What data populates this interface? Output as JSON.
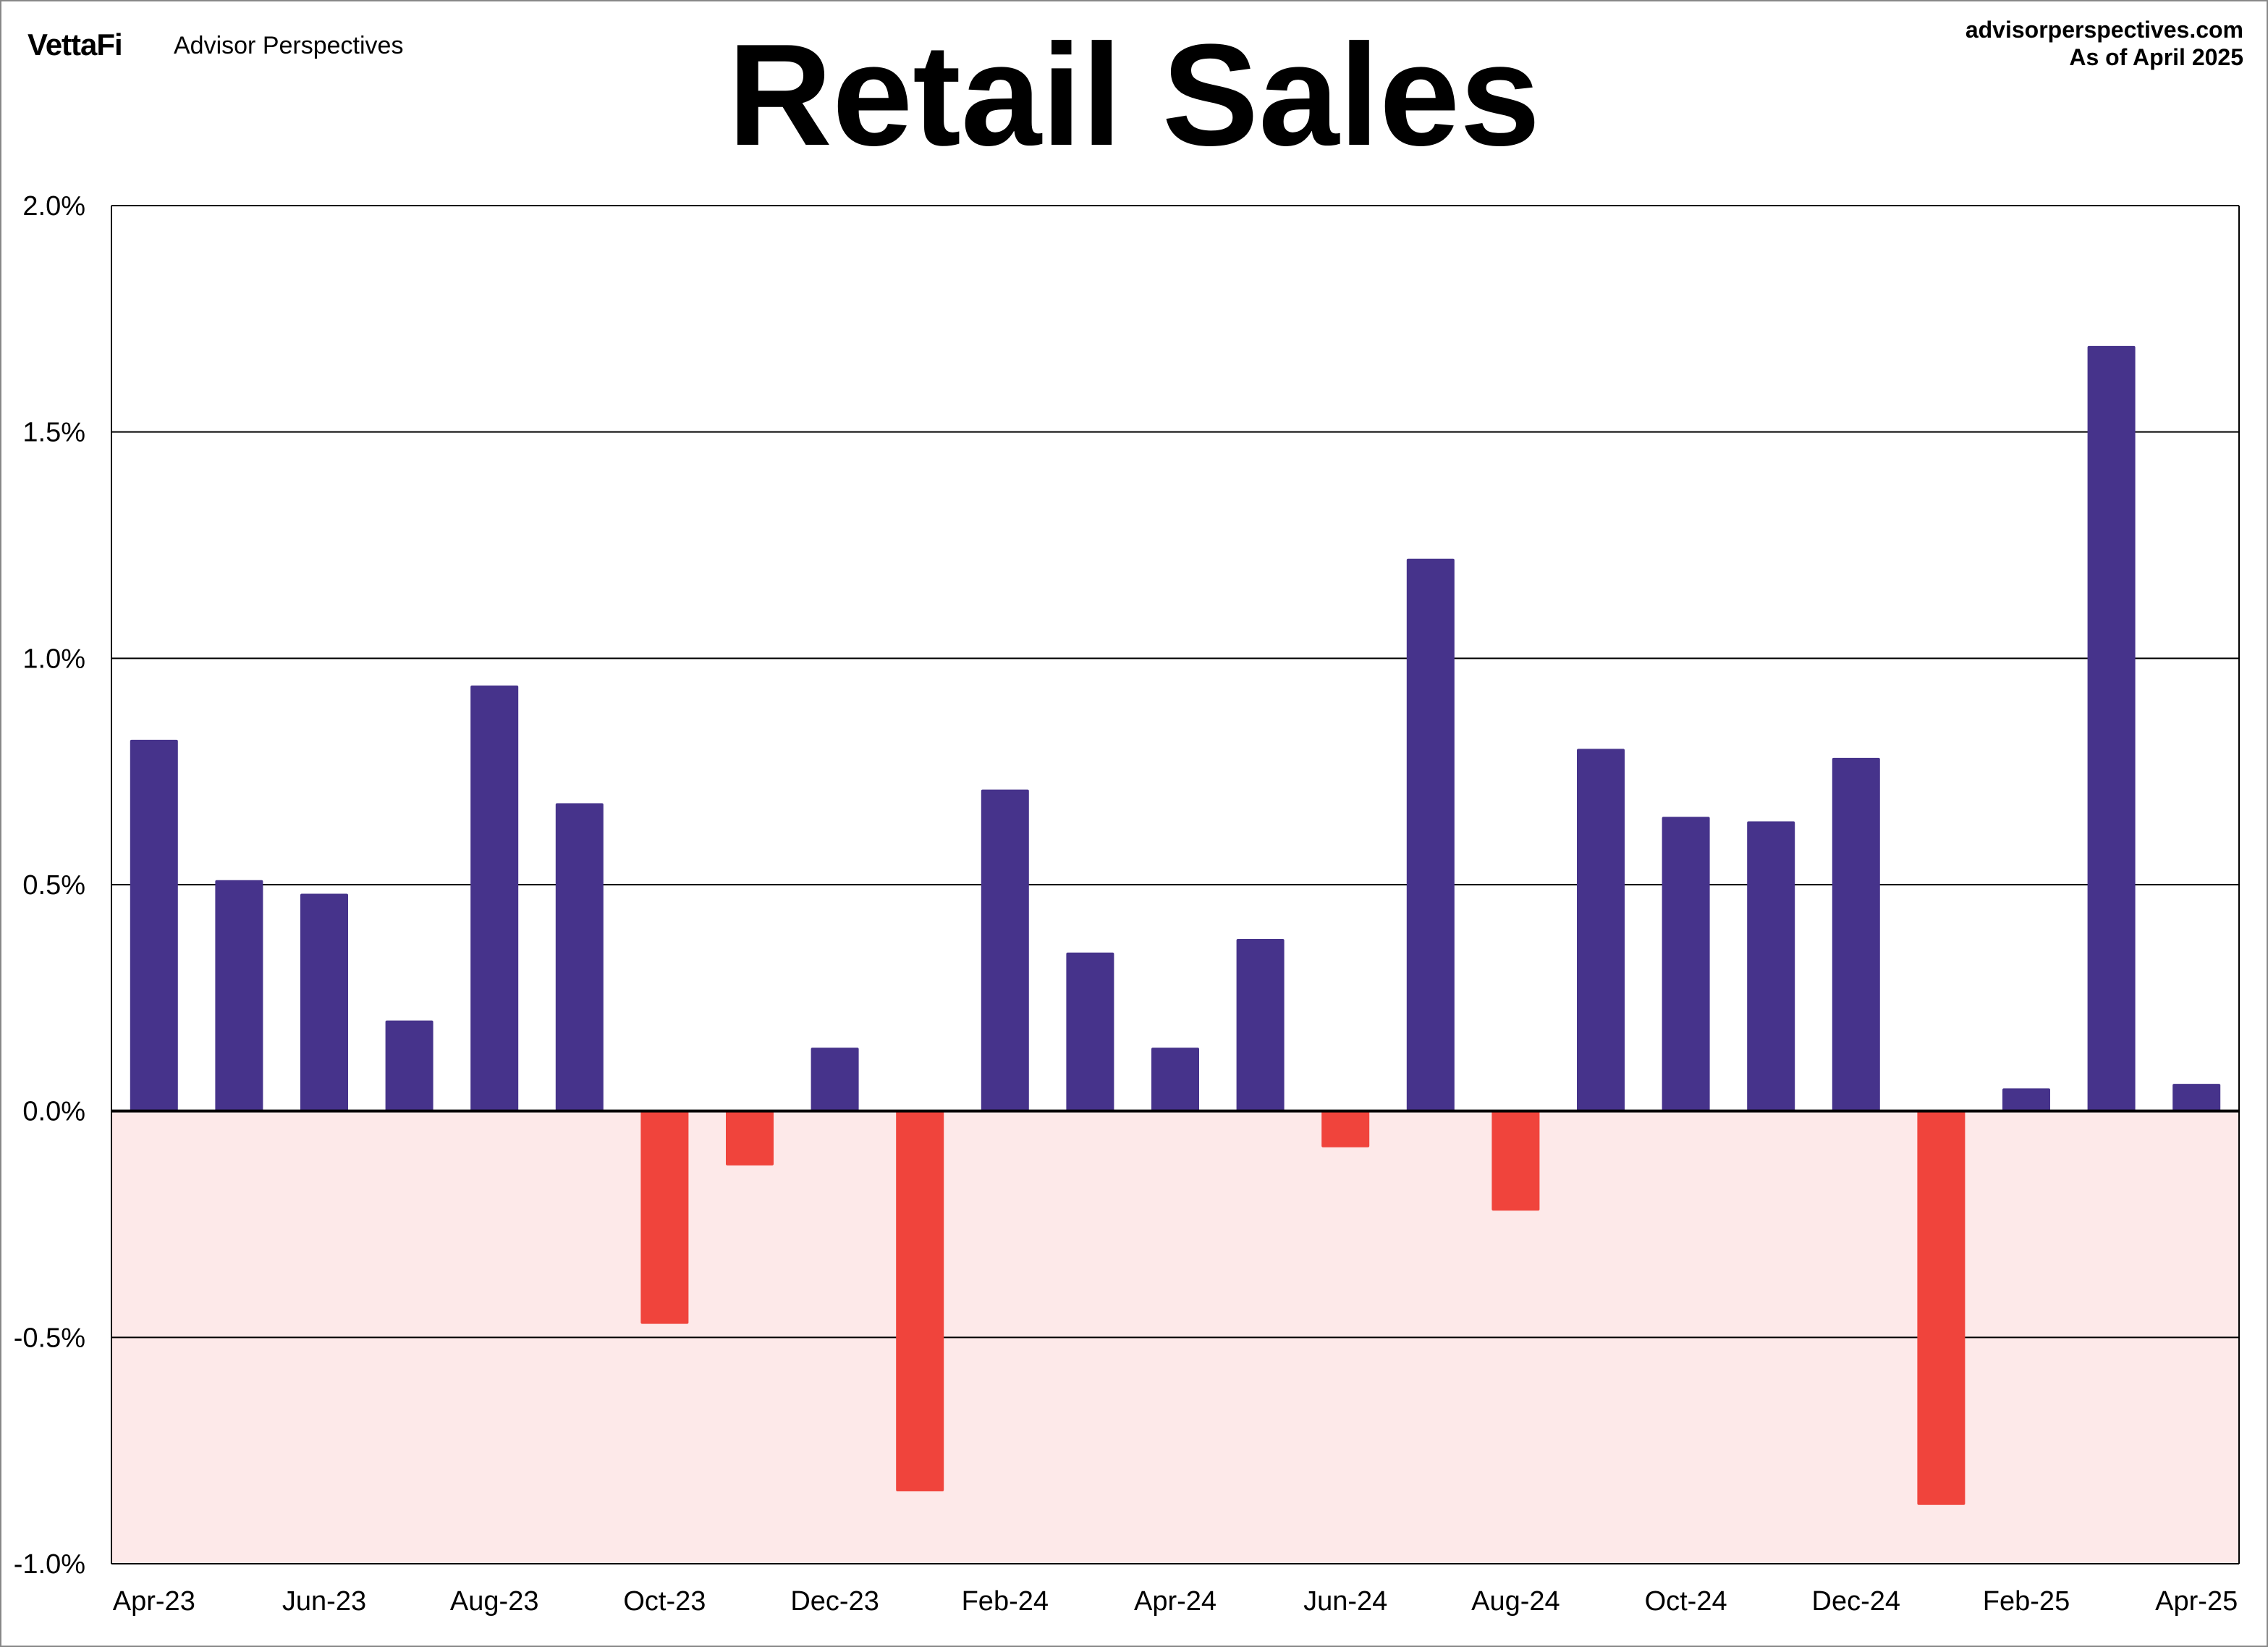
{
  "header": {
    "logo": "VettaFi",
    "brand": "Advisor Perspectives",
    "site": "advisorperspectives.com",
    "as_of": "As of April 2025"
  },
  "chart_data": {
    "type": "bar",
    "title": "Retail Sales",
    "xlabel": "",
    "ylabel": "",
    "ylim": [
      -1.0,
      2.0
    ],
    "yticks": [
      2.0,
      1.5,
      1.0,
      0.5,
      0.0,
      -0.5,
      -1.0
    ],
    "ytick_labels": [
      "2.0%",
      "1.5%",
      "1.0%",
      "0.5%",
      "0.0%",
      "-0.5%",
      "-1.0%"
    ],
    "grid": true,
    "negative_region_shaded": true,
    "colors": {
      "positive": "#46338b",
      "negative": "#f0443c",
      "negative_region": "#fde9e9"
    },
    "categories": [
      "Apr-23",
      "May-23",
      "Jun-23",
      "Jul-23",
      "Aug-23",
      "Sep-23",
      "Oct-23",
      "Nov-23",
      "Dec-23",
      "Jan-24",
      "Feb-24",
      "Mar-24",
      "Apr-24",
      "May-24",
      "Jun-24",
      "Jul-24",
      "Aug-24",
      "Sep-24",
      "Oct-24",
      "Nov-24",
      "Dec-24",
      "Jan-25",
      "Feb-25",
      "Mar-25",
      "Apr-25"
    ],
    "xtick_labels": [
      "Apr-23",
      "Jun-23",
      "Aug-23",
      "Oct-23",
      "Dec-23",
      "Feb-24",
      "Apr-24",
      "Jun-24",
      "Aug-24",
      "Oct-24",
      "Dec-24",
      "Feb-25",
      "Apr-25"
    ],
    "values": [
      0.82,
      0.51,
      0.48,
      0.2,
      0.94,
      0.68,
      -0.47,
      -0.12,
      0.14,
      -0.84,
      0.71,
      0.35,
      0.14,
      0.38,
      -0.08,
      1.22,
      -0.22,
      0.8,
      0.65,
      0.64,
      0.78,
      -0.87,
      0.05,
      1.69,
      0.06
    ]
  }
}
